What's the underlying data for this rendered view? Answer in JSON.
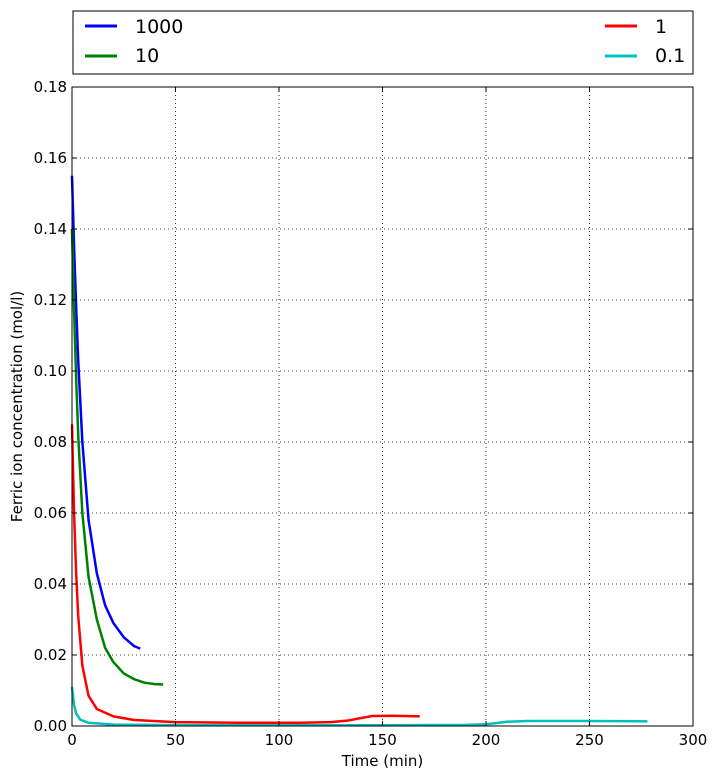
{
  "chart_data": {
    "type": "line",
    "xlabel": "Time (min)",
    "ylabel": "Ferric ion concentration (mol/l)",
    "xlim": [
      0,
      300
    ],
    "ylim": [
      0,
      0.18
    ],
    "xticks": [
      0,
      50,
      100,
      150,
      200,
      250,
      300
    ],
    "yticks": [
      0.0,
      0.02,
      0.04,
      0.06,
      0.08,
      0.1,
      0.12,
      0.14,
      0.16,
      0.18
    ],
    "xtick_labels": [
      "0",
      "50",
      "100",
      "150",
      "200",
      "250",
      "300"
    ],
    "ytick_labels": [
      "0.00",
      "0.02",
      "0.04",
      "0.06",
      "0.08",
      "0.10",
      "0.12",
      "0.14",
      "0.16",
      "0.18"
    ],
    "grid": true,
    "legend_position": "top (outside, above plot)",
    "series": [
      {
        "name": "1000",
        "color": "#0000ff",
        "points": [
          [
            0,
            0.155
          ],
          [
            1,
            0.135
          ],
          [
            2,
            0.118
          ],
          [
            3,
            0.103
          ],
          [
            5,
            0.08
          ],
          [
            8,
            0.058
          ],
          [
            12,
            0.043
          ],
          [
            16,
            0.034
          ],
          [
            20,
            0.029
          ],
          [
            25,
            0.025
          ],
          [
            30,
            0.0225
          ],
          [
            33,
            0.0218
          ]
        ]
      },
      {
        "name": "10",
        "color": "#008000",
        "points": [
          [
            0,
            0.14
          ],
          [
            1,
            0.117
          ],
          [
            2,
            0.098
          ],
          [
            3,
            0.082
          ],
          [
            5,
            0.06
          ],
          [
            8,
            0.042
          ],
          [
            12,
            0.03
          ],
          [
            16,
            0.022
          ],
          [
            20,
            0.018
          ],
          [
            25,
            0.0148
          ],
          [
            30,
            0.0132
          ],
          [
            35,
            0.0122
          ],
          [
            40,
            0.0118
          ],
          [
            44,
            0.0117
          ]
        ]
      },
      {
        "name": "1",
        "color": "#ff0000",
        "points": [
          [
            0,
            0.085
          ],
          [
            1,
            0.06
          ],
          [
            2,
            0.043
          ],
          [
            3,
            0.031
          ],
          [
            5,
            0.017
          ],
          [
            8,
            0.0085
          ],
          [
            12,
            0.0048
          ],
          [
            20,
            0.0027
          ],
          [
            30,
            0.0017
          ],
          [
            50,
            0.0011
          ],
          [
            80,
            0.0009
          ],
          [
            110,
            0.0009
          ],
          [
            125,
            0.0011
          ],
          [
            133,
            0.0015
          ],
          [
            140,
            0.0023
          ],
          [
            145,
            0.0028
          ],
          [
            155,
            0.0029
          ],
          [
            168,
            0.0027
          ]
        ]
      },
      {
        "name": "0.1",
        "color": "#00bfbf",
        "points": [
          [
            0,
            0.011
          ],
          [
            1,
            0.006
          ],
          [
            2,
            0.0035
          ],
          [
            4,
            0.0018
          ],
          [
            8,
            0.0009
          ],
          [
            20,
            0.0004
          ],
          [
            60,
            0.0002
          ],
          [
            150,
            0.0002
          ],
          [
            190,
            0.0003
          ],
          [
            200,
            0.0005
          ],
          [
            205,
            0.0008
          ],
          [
            210,
            0.0012
          ],
          [
            220,
            0.0014
          ],
          [
            250,
            0.0014
          ],
          [
            278,
            0.0013
          ]
        ]
      }
    ]
  }
}
